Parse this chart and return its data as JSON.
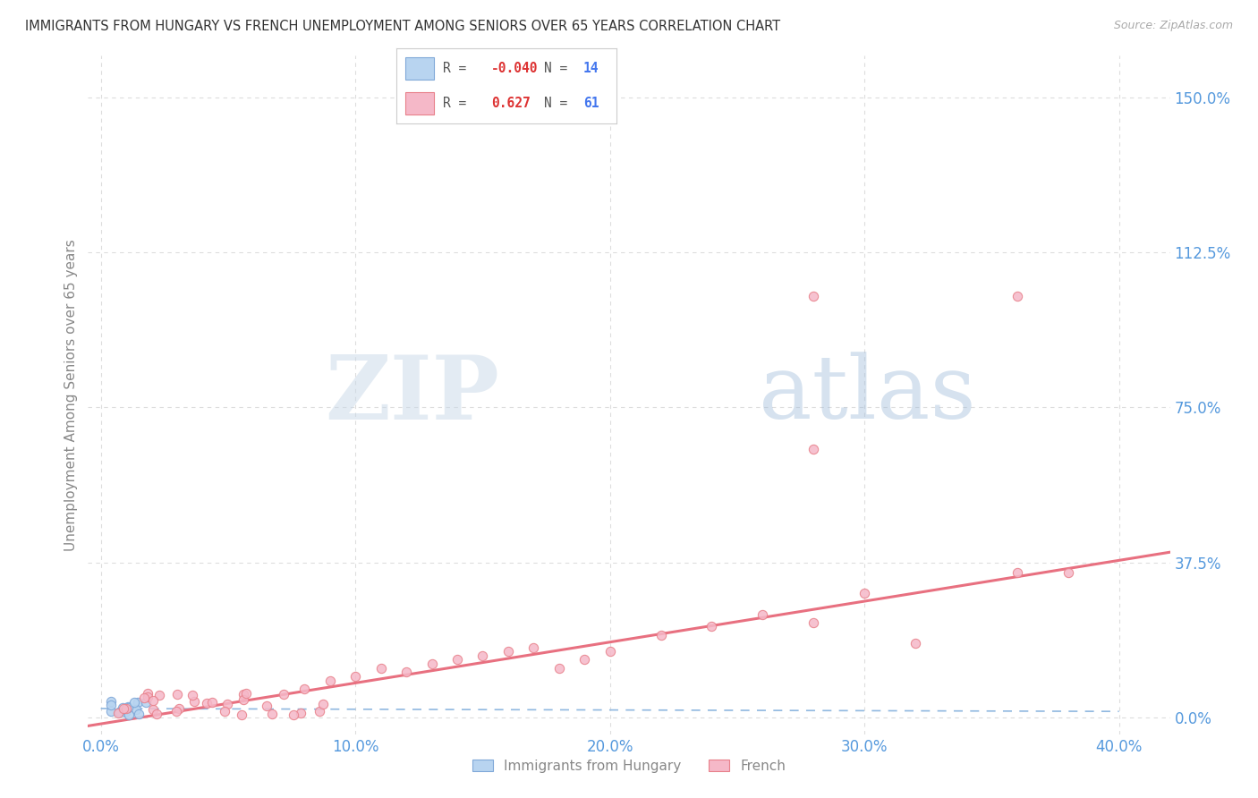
{
  "title": "IMMIGRANTS FROM HUNGARY VS FRENCH UNEMPLOYMENT AMONG SENIORS OVER 65 YEARS CORRELATION CHART",
  "source": "Source: ZipAtlas.com",
  "ylabel": "Unemployment Among Seniors over 65 years",
  "legend_blue_R": "-0.040",
  "legend_blue_N": "14",
  "legend_pink_R": "0.627",
  "legend_pink_N": "61",
  "legend_label1": "Immigrants from Hungary",
  "legend_label2": "French",
  "xlim": [
    -0.005,
    0.42
  ],
  "ylim": [
    -0.04,
    1.6
  ],
  "yticks": [
    0.0,
    0.375,
    0.75,
    1.125,
    1.5
  ],
  "ytick_labels": [
    "0.0%",
    "37.5%",
    "75.0%",
    "112.5%",
    "150.0%"
  ],
  "xticks": [
    0.0,
    0.1,
    0.2,
    0.3,
    0.4
  ],
  "xtick_labels": [
    "0.0%",
    "10.0%",
    "20.0%",
    "30.0%",
    "40.0%"
  ],
  "background_color": "#ffffff",
  "grid_color": "#dddddd",
  "title_color": "#333333",
  "source_color": "#aaaaaa",
  "blue_color": "#b8d4f0",
  "pink_color": "#f5b8c8",
  "blue_edge_color": "#80a8d8",
  "pink_edge_color": "#e8808a",
  "blue_line_color": "#90b8e0",
  "pink_line_color": "#e87080",
  "tick_label_color": "#5599dd",
  "ylabel_color": "#888888",
  "watermark_zip_color": "#c8d8e8",
  "watermark_atlas_color": "#9ab8d8"
}
